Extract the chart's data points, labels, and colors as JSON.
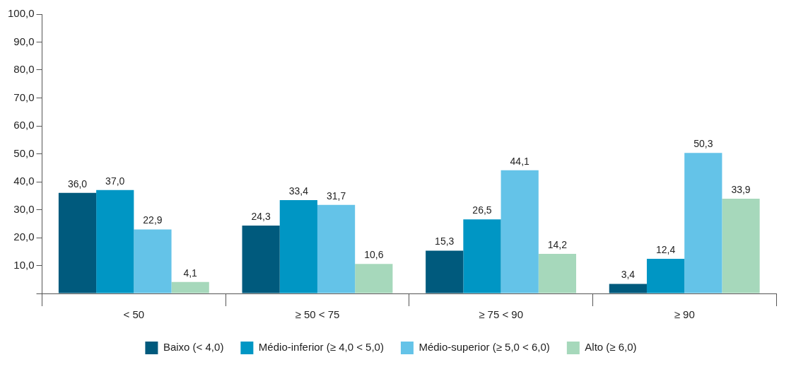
{
  "chart_data": {
    "type": "bar",
    "categories": [
      "< 50",
      "≥ 50 < 75",
      "≥ 75 < 90",
      "≥ 90"
    ],
    "series": [
      {
        "name": "Baixo (< 4,0)",
        "color": "#005a7d",
        "values": [
          36.0,
          24.3,
          15.3,
          3.4
        ],
        "value_labels": [
          "36,0",
          "24,3",
          "15,3",
          "3,4"
        ]
      },
      {
        "name": "Médio-inferior (≥ 4,0 < 5,0)",
        "color": "#0096c4",
        "values": [
          37.0,
          33.4,
          26.5,
          12.4
        ],
        "value_labels": [
          "37,0",
          "33,4",
          "26,5",
          "12,4"
        ]
      },
      {
        "name": "Médio-superior (≥ 5,0 < 6,0)",
        "color": "#64c3e8",
        "values": [
          22.9,
          31.7,
          44.1,
          50.3
        ],
        "value_labels": [
          "22,9",
          "31,7",
          "44,1",
          "50,3"
        ]
      },
      {
        "name": "Alto (≥ 6,0)",
        "color": "#a6d8bb",
        "values": [
          4.1,
          10.6,
          14.2,
          33.9
        ],
        "value_labels": [
          "4,1",
          "10,6",
          "14,2",
          "33,9"
        ]
      }
    ],
    "ylim": [
      0,
      100
    ],
    "yticks": [
      {
        "value": 0,
        "label": null
      },
      {
        "value": 10,
        "label": "10,0"
      },
      {
        "value": 20,
        "label": "20,0"
      },
      {
        "value": 30,
        "label": "30,0"
      },
      {
        "value": 40,
        "label": "40,0"
      },
      {
        "value": 50,
        "label": "50,0"
      },
      {
        "value": 60,
        "label": "60,0"
      },
      {
        "value": 70,
        "label": "70,0"
      },
      {
        "value": 80,
        "label": "80,0"
      },
      {
        "value": 90,
        "label": "90,0"
      },
      {
        "value": 100,
        "label": "100,0"
      }
    ],
    "grid": false,
    "legend": "bottom"
  }
}
